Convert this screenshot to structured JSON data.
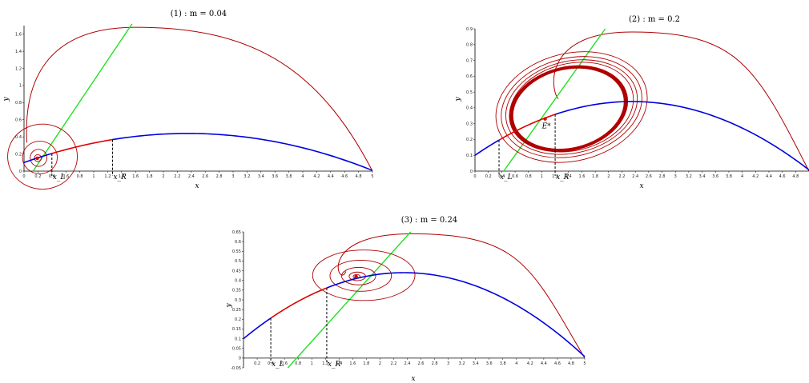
{
  "chart_data": [
    {
      "type": "line",
      "title": "(1) : m = 0.04",
      "xlabel": "x",
      "ylabel": "y",
      "xlim": [
        0,
        5
      ],
      "ylim": [
        0,
        1.7
      ],
      "xticks": [
        0,
        0.2,
        0.4,
        0.6,
        0.8,
        1,
        1.2,
        1.4,
        1.6,
        1.8,
        2,
        2.2,
        2.4,
        2.6,
        2.8,
        3,
        3.2,
        3.4,
        3.6,
        3.8,
        4,
        4.2,
        4.4,
        4.6,
        4.8,
        5
      ],
      "xtick_labels": [
        "0",
        "0.2",
        "0.4",
        "0.6",
        "0.8",
        "1",
        "1.2",
        "1.4",
        "1.6",
        "1.8",
        "2",
        "2.2",
        "2.4",
        "2.6",
        "2.8",
        "3",
        "3.2",
        "3.4",
        "3.6",
        "3.8",
        "4",
        "4.2",
        "4.4",
        "4.6",
        "4.8",
        "5"
      ],
      "yticks": [
        0,
        0.2,
        0.4,
        0.6,
        0.8,
        1,
        1.2,
        1.4,
        1.6
      ],
      "ytick_labels": [
        "0",
        "0.2",
        "0.4",
        "0.6",
        "0.8",
        "1",
        "1.2",
        "1.4",
        "1.6"
      ],
      "equilibrium": [
        0.19,
        0.15
      ],
      "equilibrium_label": "",
      "xL": 0.4,
      "xR": 1.27,
      "xL_label": "x_L",
      "xR_label": "x_R",
      "nullcline_peak": [
        2.35,
        0.44
      ],
      "nullcline_y0": 0.1,
      "nullcline_end": 5,
      "green_line": [
        [
          0.13,
          0
        ],
        [
          1.55,
          1.72
        ]
      ],
      "spiral_center": [
        0.19,
        0.15
      ],
      "spiral_radii_x": [
        0.5,
        0.25,
        0.12,
        0.05
      ],
      "spiral_radii_y": [
        0.38,
        0.19,
        0.1,
        0.04
      ],
      "orbit_peak": [
        1.6,
        1.68
      ],
      "limit_cycle": null,
      "colors": {
        "nullcline_blue": "#0000e0",
        "nullcline_red": "#e00000",
        "orbit": "#b00000",
        "line": "#22e022",
        "dashed": "#000000"
      }
    },
    {
      "type": "line",
      "title": "(2) : m = 0.2",
      "xlabel": "x",
      "ylabel": "y",
      "xlim": [
        0,
        5
      ],
      "ylim": [
        0,
        0.9
      ],
      "xticks": [
        0,
        0.2,
        0.4,
        0.6,
        0.8,
        1,
        1.2,
        1.4,
        1.6,
        1.8,
        2,
        2.2,
        2.4,
        2.6,
        2.8,
        3,
        3.2,
        3.4,
        3.6,
        3.8,
        4,
        4.2,
        4.4,
        4.6,
        4.8
      ],
      "xtick_labels": [
        "0",
        "0.2",
        "0.4",
        "0.6",
        "0.8",
        "1",
        "1.2",
        "1.4",
        "1.6",
        "1.8",
        "2",
        "2.2",
        "2.4",
        "2.6",
        "2.8",
        "3",
        "3.2",
        "3.4",
        "3.6",
        "3.8",
        "4",
        "4.2",
        "4.4",
        "4.6",
        "4.8"
      ],
      "yticks": [
        0,
        0.1,
        0.2,
        0.3,
        0.4,
        0.5,
        0.6,
        0.7,
        0.8,
        0.9
      ],
      "ytick_labels": [
        "0",
        "0.1",
        "0.2",
        "0.3",
        "0.4",
        "0.5",
        "0.6",
        "0.7",
        "0.8",
        "0.9"
      ],
      "equilibrium": [
        1.05,
        0.33
      ],
      "equilibrium_label": "E*",
      "xL": 0.36,
      "xR": 1.2,
      "xL_label": "x_L",
      "xR_label": "x_R",
      "nullcline_peak": [
        2.35,
        0.44
      ],
      "nullcline_y0": 0.1,
      "nullcline_end": 5,
      "green_line": [
        [
          0.43,
          0
        ],
        [
          1.95,
          0.9
        ]
      ],
      "spiral_center": [
        1.4,
        0.4
      ],
      "limit_cycle": {
        "cx": 1.4,
        "cy": 0.395,
        "rx": 0.85,
        "ry": 0.25
      },
      "outer_loops_rx": [
        1.15,
        1.07,
        1.0,
        0.94
      ],
      "outer_loops_ry": [
        0.34,
        0.31,
        0.29,
        0.275
      ],
      "orbit_peak": [
        2.35,
        0.88
      ],
      "colors": {
        "nullcline_blue": "#0000e0",
        "nullcline_red": "#e00000",
        "orbit": "#b00000",
        "line": "#22e022",
        "dashed": "#000000"
      }
    },
    {
      "type": "line",
      "title": "(3) : m = 0.24",
      "xlabel": "x",
      "ylabel": "y",
      "xlim": [
        0,
        5
      ],
      "ylim": [
        -0.05,
        0.65
      ],
      "xticks": [
        0.2,
        0.4,
        0.6,
        0.8,
        1,
        1.2,
        1.4,
        1.6,
        1.8,
        2,
        2.2,
        2.4,
        2.6,
        2.8,
        3,
        3.2,
        3.4,
        3.6,
        3.8,
        4,
        4.2,
        4.4,
        4.6,
        4.8,
        5
      ],
      "xtick_labels": [
        "0.2",
        "0.4",
        "0.6",
        "0.8",
        "1",
        "1.2",
        "1.4",
        "1.6",
        "1.8",
        "2",
        "2.2",
        "2.4",
        "2.6",
        "2.8",
        "3",
        "3.2",
        "3.4",
        "3.6",
        "3.8",
        "4",
        "4.2",
        "4.4",
        "4.6",
        "4.8",
        "5"
      ],
      "yticks": [
        -0.05,
        0,
        0.05,
        0.1,
        0.15,
        0.2,
        0.25,
        0.3,
        0.35,
        0.4,
        0.45,
        0.5,
        0.55,
        0.6,
        0.65
      ],
      "ytick_labels": [
        "-0.05",
        "0",
        "0.05",
        "0.1",
        "0.15",
        "0.2",
        "0.25",
        "0.3",
        "0.35",
        "0.4",
        "0.45",
        "0.5",
        "0.55",
        "0.6",
        "0.65"
      ],
      "equilibrium": [
        1.65,
        0.42
      ],
      "equilibrium_label": "",
      "xL": 0.4,
      "xR": 1.22,
      "xL_label": "x_L",
      "xR_label": "x_R",
      "nullcline_peak": [
        2.35,
        0.44
      ],
      "nullcline_y0": 0.1,
      "nullcline_end": 5,
      "green_line": [
        [
          0.65,
          -0.05
        ],
        [
          2.45,
          0.65
        ]
      ],
      "spiral_center": [
        1.65,
        0.42
      ],
      "spiral_radii_x": [
        0.75,
        0.45,
        0.25,
        0.12,
        0.05
      ],
      "spiral_radii_y": [
        0.13,
        0.08,
        0.045,
        0.022,
        0.01
      ],
      "orbit_peak": [
        2.45,
        0.64
      ],
      "limit_cycle": null,
      "colors": {
        "nullcline_blue": "#0000e0",
        "nullcline_red": "#e00000",
        "orbit": "#b00000",
        "line": "#22e022",
        "dashed": "#000000"
      }
    }
  ]
}
